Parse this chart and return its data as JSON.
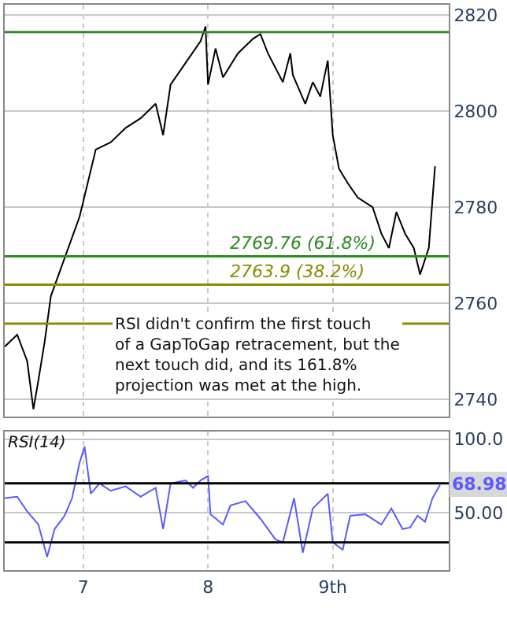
{
  "chart_data": [
    {
      "type": "line",
      "x": [
        6.37,
        6.47,
        6.55,
        6.6,
        6.64,
        6.69,
        6.74,
        6.97,
        7.1,
        7.22,
        7.34,
        7.46,
        7.58,
        7.64,
        7.7,
        7.82,
        7.94,
        7.98,
        8.0,
        8.06,
        8.12,
        8.24,
        8.36,
        8.42,
        8.48,
        8.6,
        8.66,
        8.68,
        8.78,
        8.84,
        8.9,
        8.96,
        9.0,
        9.05,
        9.12,
        9.2,
        9.32,
        9.39,
        9.45,
        9.51,
        9.58,
        9.65,
        9.7,
        9.77,
        9.82
      ],
      "series": [
        {
          "color": "#000000",
          "values": [
            2751.0,
            2753.5,
            2748,
            2738,
            2744,
            2752,
            2761.5,
            2778,
            2792,
            2793.5,
            2796.5,
            2798.5,
            2801.5,
            2795,
            2805.5,
            2810,
            2814.5,
            2817.6,
            2805.5,
            2813,
            2807,
            2812,
            2815,
            2816,
            2812,
            2806,
            2812,
            2807.5,
            2801.5,
            2806,
            2803,
            2810.5,
            2795,
            2788,
            2785,
            2782,
            2780,
            2774.5,
            2771.5,
            2779,
            2774.5,
            2771.5,
            2766,
            2771.5,
            2788.5
          ]
        }
      ],
      "ylim": [
        2736.4,
        2822.1
      ],
      "yticks": [
        2740,
        2760,
        2780,
        2800,
        2820
      ],
      "xlim": [
        6.37,
        9.93
      ],
      "xticks": [
        {
          "value": 7,
          "label": null
        },
        {
          "value": 8,
          "label": null
        },
        {
          "value": 9,
          "label": null
        }
      ],
      "tick_labels": "y",
      "grid": true,
      "ref_lines": [
        {
          "axis": "y",
          "value": 2816.4,
          "color": "#2e8b22"
        },
        {
          "axis": "y",
          "value": 2769.76,
          "label": "2769.76 (61.8%)",
          "color": "#2e8b22"
        },
        {
          "axis": "y",
          "value": 2763.9,
          "label": "2763.9 (38.2%)",
          "color": "#8b8b00"
        },
        {
          "axis": "y",
          "value": 2755.8,
          "color": "#8b8b00"
        }
      ],
      "annotations": [
        "RSI didn't confirm the first touch of a GapToGap retracement, but the next touch did, and its 161.8% projection was met at the high."
      ]
    },
    {
      "type": "line",
      "title": "RSI(14)",
      "x": [
        6.37,
        6.47,
        6.55,
        6.64,
        6.71,
        6.77,
        6.85,
        6.91,
        6.97,
        7.01,
        7.06,
        7.13,
        7.22,
        7.34,
        7.46,
        7.58,
        7.64,
        7.7,
        7.82,
        7.88,
        7.94,
        8.0,
        8.02,
        8.12,
        8.18,
        8.3,
        8.42,
        8.54,
        8.6,
        8.69,
        8.76,
        8.84,
        8.96,
        9.0,
        9.08,
        9.14,
        9.26,
        9.39,
        9.47,
        9.56,
        9.62,
        9.68,
        9.74,
        9.8,
        9.86
      ],
      "series": [
        {
          "color": "#5a5aff",
          "values": [
            60,
            61,
            51,
            42,
            20,
            39,
            48,
            60,
            84,
            95,
            63,
            70,
            65,
            68,
            61,
            67,
            39,
            70,
            72,
            67,
            72,
            75,
            49,
            42,
            55,
            58,
            46,
            32,
            30,
            60,
            23,
            53,
            63,
            30,
            25,
            48,
            49,
            42,
            53,
            39,
            40,
            48,
            44,
            60,
            68.98
          ]
        }
      ],
      "ylim": [
        11,
        105
      ],
      "yticks": [
        {
          "value": 50,
          "label": "50.00"
        },
        {
          "value": 100,
          "label": "100.0"
        }
      ],
      "xlim": [
        6.37,
        9.93
      ],
      "xticks": [
        {
          "value": 7,
          "label": "7"
        },
        {
          "value": 8,
          "label": "8"
        },
        {
          "value": 9,
          "label": "9th"
        }
      ],
      "grid": true,
      "value_labels": [
        null,
        null,
        null,
        null,
        null,
        null,
        null,
        null,
        null,
        null,
        null,
        null,
        null,
        null,
        null,
        null,
        null,
        null,
        null,
        null,
        null,
        null,
        null,
        null,
        null,
        null,
        null,
        null,
        null,
        null,
        null,
        null,
        null,
        null,
        null,
        null,
        null,
        null,
        null,
        null,
        null,
        null,
        null,
        null,
        "68.98"
      ],
      "ref_lines": [
        {
          "axis": "y",
          "value": 70,
          "color": "#000000"
        },
        {
          "axis": "y",
          "value": 30,
          "color": "#000000"
        }
      ]
    }
  ]
}
